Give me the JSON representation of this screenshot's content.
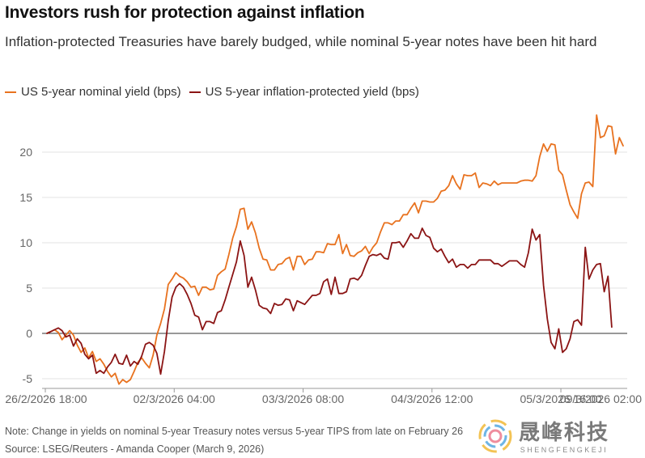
{
  "title": "Investors rush for protection against inflation",
  "subtitle": "Inflation-protected Treasuries have barely budged, while nominal 5-year notes have been hit hard",
  "note": "Note: Change in yields on nominal 5-year Treasury notes versus 5-year TIPS from late on February 26",
  "source": "Source: LSEG/Reuters - Amanda Cooper (March 9, 2026)",
  "watermark": {
    "cn": "晟峰科技",
    "en": "SHENGFENGKEJI"
  },
  "colors": {
    "nominal": "#e8721f",
    "tips": "#8b1414",
    "grid": "#e3e3e3",
    "axis": "#333333",
    "tick": "#666666"
  },
  "chart_data": {
    "type": "line",
    "title": "Investors rush for protection against inflation",
    "xlabel": "",
    "ylabel": "",
    "ylim": [
      -6,
      25
    ],
    "yticks": [
      -5,
      0,
      5,
      10,
      15,
      20
    ],
    "xticklabels": [
      "26/2/2026 18:00",
      "02/3/2026 04:00",
      "03/3/2026 08:00",
      "04/3/2026 12:00",
      "05/3/2026 16:00",
      "09/3/2026 02:00"
    ],
    "xtick_index": [
      0,
      34,
      68,
      102,
      136,
      170
    ],
    "series": [
      {
        "name": "US 5-year nominal yield (bps)",
        "color": "#e8721f",
        "values": [
          0,
          0.2,
          0.4,
          0.1,
          -0.7,
          -0.2,
          0.3,
          -0.2,
          -1.3,
          -2.1,
          -1.6,
          -2.7,
          -2,
          -3.1,
          -2.8,
          -3.4,
          -4.2,
          -4.8,
          -4.4,
          -5.6,
          -5.1,
          -5.4,
          -5.1,
          -4.2,
          -3.2,
          -2.7,
          -3.3,
          -3.8,
          -2.4,
          -0.2,
          1.1,
          2.7,
          5.4,
          6,
          6.7,
          6.3,
          6.1,
          5.7,
          5.1,
          5.2,
          4.2,
          5.1,
          5.1,
          4.8,
          4.9,
          6.4,
          6.8,
          7.1,
          8.7,
          10.5,
          11.8,
          13.7,
          13.8,
          11.5,
          12.3,
          11.1,
          9.4,
          8.2,
          8.1,
          7,
          7,
          7.6,
          7.7,
          8.2,
          8.4,
          7,
          8.5,
          8.5,
          7.6,
          8.1,
          8.2,
          9,
          9,
          8.9,
          9.9,
          9.8,
          9.8,
          10.9,
          8.8,
          9.8,
          8.6,
          8.5,
          8.9,
          9.1,
          9.6,
          8.8,
          9.5,
          10,
          11.2,
          12.2,
          12.2,
          12,
          12.4,
          12.4,
          13.1,
          13.1,
          13.8,
          14.4,
          13.3,
          14.6,
          14.6,
          14.5,
          14.5,
          14.9,
          15.7,
          15.8,
          16.3,
          17.4,
          16.5,
          15.9,
          17.5,
          17.4,
          17.4,
          17.7,
          16.1,
          16.6,
          16.5,
          16.3,
          16.8,
          16.4,
          16.6,
          16.6,
          16.6,
          16.6,
          16.6,
          16.8,
          16.9,
          16.9,
          16.8,
          17.4,
          19.5,
          20.9,
          20.1,
          20.9,
          20.8,
          18,
          17.5,
          15.8,
          14.2,
          13.4,
          12.7,
          15.4,
          16.6,
          16.7,
          16.2,
          24.1,
          21.6,
          21.8,
          22.9,
          22.8,
          19.8,
          21.6,
          20.7
        ],
        "cutoff_index": 163
      },
      {
        "name": "US 5-year inflation-protected yield (bps)",
        "color": "#8b1414",
        "values": [
          0,
          0.2,
          0.4,
          0.6,
          0.3,
          -0.4,
          -0.2,
          -1.4,
          -0.6,
          -1.1,
          -2.3,
          -2.8,
          -2.4,
          -4.4,
          -4.1,
          -4.4,
          -3.7,
          -3.2,
          -2.3,
          -3.3,
          -3.4,
          -2.4,
          -3.6,
          -3.1,
          -3.4,
          -2.5,
          -1.2,
          -1,
          -1.3,
          -2.2,
          -4.5,
          -2,
          1.4,
          4,
          5.1,
          5.5,
          5.1,
          4.3,
          3.3,
          2,
          1.8,
          0.4,
          1.3,
          1.3,
          1.1,
          2.3,
          2.5,
          3.7,
          5.1,
          6.5,
          7.9,
          10.2,
          8.6,
          5.1,
          6.2,
          4.8,
          3.1,
          2.8,
          2.7,
          2.2,
          3.3,
          3.1,
          3.2,
          3.8,
          3.7,
          2.5,
          3.6,
          3.4,
          3.2,
          3.7,
          4.2,
          4.2,
          4.4,
          5.7,
          6,
          4.3,
          6.2,
          4.4,
          4.4,
          4.6,
          6,
          6.1,
          5.9,
          6.4,
          7.5,
          8.5,
          8.7,
          8.6,
          8.8,
          8.3,
          8.2,
          10,
          10,
          10.1,
          9.5,
          10.2,
          11,
          10.5,
          10.5,
          11.6,
          10.8,
          10.6,
          9.4,
          9,
          9.3,
          8.5,
          7.8,
          8.2,
          7.3,
          7.6,
          7.6,
          7.2,
          7.6,
          7.6,
          8.1,
          8.1,
          8.1,
          8.1,
          7.7,
          7.7,
          7.4,
          7.7,
          8,
          8,
          8,
          7.6,
          7.3,
          8.9,
          11.5,
          10.3,
          10.9,
          5.3,
          1.6,
          -1,
          -1.7,
          0.5,
          -2.1,
          -1.7,
          -0.6,
          1.3,
          1.5,
          0.9,
          9.5,
          6,
          7,
          7.6,
          7.7,
          4.6,
          6.3,
          0.7
        ],
        "cutoff_index": 163
      }
    ]
  }
}
